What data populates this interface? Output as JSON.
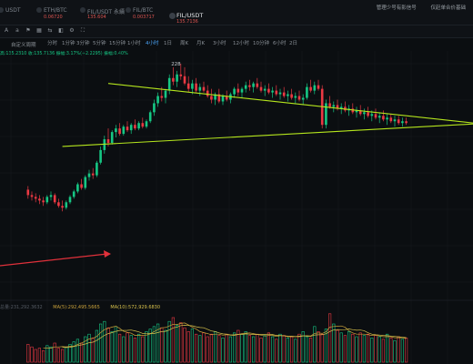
{
  "tabs": [
    {
      "name": "USDT",
      "price": "",
      "active": false
    },
    {
      "name": "ETH/BTC",
      "price": "0.06720",
      "active": false
    },
    {
      "name": "FIL/USDT 永續",
      "price": "135.604",
      "active": false
    },
    {
      "name": "FIL/BTC",
      "price": "0.003717",
      "active": false
    },
    {
      "name": "FIL/USDT",
      "price": "135.7136",
      "active": true
    }
  ],
  "top_links": [
    "管理少号有影信号",
    "仅赶单合价基础"
  ],
  "toolbar": {
    "chart_style": "自定义周期",
    "icons": [
      "text-size-icon",
      "text-icon",
      "indicator-icon",
      "layout-icon",
      "compare-icon",
      "screenshot-icon",
      "settings-icon",
      "fullscreen-icon"
    ],
    "icon_glyphs": [
      "A",
      "a",
      "⚑",
      "▦",
      "⇆",
      "◧",
      "⚙",
      "⛶"
    ]
  },
  "timeframes": [
    "分时",
    "1分钟",
    "3分钟",
    "5分钟",
    "15分钟",
    "30分钟",
    "1小时",
    "2小时",
    "4小时",
    "6小时",
    "12小时",
    "1日",
    "3日",
    "1周",
    "1月"
  ],
  "timeframes_row2": [
    "1日",
    "周K",
    "月K",
    "1分钟",
    "5分钟",
    "15分钟",
    "30分钟",
    "1小时",
    "2小时",
    "6小时",
    "12小时",
    "10分钟",
    "3小时",
    "1日",
    "2日",
    "3日",
    "年K"
  ],
  "active_timeframe": "4小时",
  "ohlc_legend": "高:135.2310  收:135.7136  振幅:3.17%(+2.2295)  振幅:0.40%",
  "peak_label": "228",
  "volume_legend": {
    "vol": "总量:231,292.3632",
    "ma5": "MA(5):292,495.5665",
    "ma10": "MA(10):572,929.6830"
  },
  "colors": {
    "up": "#16c784",
    "down": "#ea3943",
    "trendline": "#b5e61d",
    "arrow": "#e0313b",
    "ma5": "#c9a13a",
    "ma10": "#d6c04b",
    "background": "#0b0e11"
  },
  "chart_data": {
    "type": "candlestick",
    "candles": [
      [
        4,
        36,
        38,
        31,
        33
      ],
      [
        5,
        33,
        35,
        30,
        32
      ],
      [
        6,
        32,
        34,
        29,
        31
      ],
      [
        7,
        31,
        33,
        28,
        30
      ],
      [
        8,
        30,
        32,
        27,
        29
      ],
      [
        9,
        29,
        33,
        28,
        32
      ],
      [
        10,
        32,
        35,
        30,
        33
      ],
      [
        11,
        33,
        34,
        28,
        29
      ],
      [
        12,
        29,
        31,
        26,
        27
      ],
      [
        13,
        27,
        30,
        24,
        26
      ],
      [
        14,
        26,
        30,
        25,
        29
      ],
      [
        15,
        29,
        33,
        28,
        32
      ],
      [
        16,
        32,
        36,
        31,
        35
      ],
      [
        17,
        35,
        40,
        34,
        39
      ],
      [
        18,
        39,
        42,
        36,
        37
      ],
      [
        19,
        37,
        44,
        36,
        43
      ],
      [
        20,
        43,
        47,
        41,
        45
      ],
      [
        21,
        45,
        48,
        42,
        44
      ],
      [
        22,
        44,
        52,
        43,
        51
      ],
      [
        23,
        51,
        60,
        50,
        58
      ],
      [
        24,
        58,
        66,
        56,
        64
      ],
      [
        25,
        64,
        70,
        60,
        62
      ],
      [
        26,
        62,
        69,
        61,
        68
      ],
      [
        27,
        68,
        72,
        65,
        70
      ],
      [
        28,
        70,
        73,
        66,
        67
      ],
      [
        29,
        67,
        72,
        66,
        71
      ],
      [
        30,
        71,
        74,
        68,
        69
      ],
      [
        31,
        69,
        73,
        67,
        72
      ],
      [
        32,
        72,
        75,
        69,
        70
      ],
      [
        33,
        70,
        74,
        69,
        73
      ],
      [
        34,
        73,
        76,
        70,
        71
      ],
      [
        35,
        71,
        75,
        70,
        74
      ],
      [
        36,
        74,
        80,
        73,
        79
      ],
      [
        37,
        79,
        86,
        77,
        84
      ],
      [
        38,
        84,
        90,
        82,
        88
      ],
      [
        39,
        88,
        93,
        85,
        87
      ],
      [
        40,
        87,
        92,
        84,
        91
      ],
      [
        41,
        91,
        100,
        89,
        98
      ],
      [
        42,
        98,
        104,
        94,
        96
      ],
      [
        43,
        96,
        102,
        93,
        100
      ],
      [
        44,
        100,
        106,
        97,
        99
      ],
      [
        45,
        99,
        104,
        94,
        95
      ],
      [
        46,
        95,
        99,
        90,
        92
      ],
      [
        47,
        92,
        97,
        89,
        95
      ],
      [
        48,
        95,
        98,
        90,
        91
      ],
      [
        49,
        91,
        95,
        88,
        93
      ],
      [
        50,
        93,
        96,
        90,
        91
      ],
      [
        51,
        91,
        94,
        87,
        88
      ],
      [
        52,
        88,
        92,
        84,
        86
      ],
      [
        53,
        86,
        90,
        83,
        89
      ],
      [
        54,
        89,
        92,
        84,
        85
      ],
      [
        55,
        85,
        89,
        83,
        88
      ],
      [
        56,
        88,
        91,
        85,
        86
      ],
      [
        57,
        86,
        90,
        84,
        89
      ],
      [
        58,
        89,
        93,
        87,
        92
      ],
      [
        59,
        92,
        95,
        88,
        90
      ],
      [
        60,
        90,
        93,
        87,
        92
      ],
      [
        61,
        92,
        96,
        90,
        94
      ],
      [
        62,
        94,
        97,
        91,
        93
      ],
      [
        63,
        93,
        96,
        90,
        95
      ],
      [
        64,
        95,
        98,
        92,
        93
      ],
      [
        65,
        93,
        96,
        90,
        91
      ],
      [
        66,
        91,
        94,
        88,
        92
      ],
      [
        67,
        92,
        95,
        89,
        90
      ],
      [
        68,
        90,
        93,
        87,
        91
      ],
      [
        69,
        91,
        94,
        88,
        89
      ],
      [
        70,
        89,
        92,
        86,
        90
      ],
      [
        71,
        90,
        93,
        87,
        88
      ],
      [
        72,
        88,
        91,
        85,
        89
      ],
      [
        73,
        89,
        92,
        86,
        87
      ],
      [
        74,
        87,
        90,
        84,
        88
      ],
      [
        75,
        88,
        91,
        85,
        86
      ],
      [
        76,
        86,
        89,
        83,
        87
      ],
      [
        77,
        87,
        95,
        86,
        93
      ],
      [
        78,
        93,
        97,
        90,
        91
      ],
      [
        79,
        91,
        96,
        89,
        94
      ],
      [
        80,
        94,
        97,
        91,
        92
      ],
      [
        81,
        92,
        94,
        70,
        72
      ],
      [
        82,
        72,
        86,
        70,
        84
      ],
      [
        83,
        84,
        88,
        81,
        82
      ],
      [
        84,
        82,
        85,
        79,
        83
      ],
      [
        85,
        83,
        86,
        80,
        81
      ],
      [
        86,
        81,
        84,
        78,
        82
      ],
      [
        87,
        82,
        85,
        79,
        80
      ],
      [
        88,
        80,
        83,
        77,
        81
      ],
      [
        89,
        81,
        84,
        78,
        79
      ],
      [
        90,
        79,
        82,
        76,
        80
      ],
      [
        91,
        80,
        83,
        77,
        78
      ],
      [
        92,
        78,
        81,
        75,
        79
      ],
      [
        93,
        79,
        82,
        76,
        77
      ],
      [
        94,
        77,
        80,
        74,
        78
      ],
      [
        95,
        78,
        81,
        75,
        76
      ],
      [
        96,
        76,
        79,
        73,
        77
      ],
      [
        97,
        77,
        80,
        74,
        75
      ],
      [
        98,
        75,
        78,
        72,
        76
      ],
      [
        99,
        76,
        78,
        73,
        74
      ],
      [
        100,
        74,
        77,
        71,
        75
      ],
      [
        101,
        75,
        77,
        72,
        73
      ],
      [
        102,
        73,
        76,
        71,
        74
      ],
      [
        103,
        74,
        76,
        72,
        73
      ]
    ],
    "trendlines": [
      {
        "name": "upper",
        "from": [
          25,
          95
        ],
        "to": [
          125,
          72
        ]
      },
      {
        "name": "lower",
        "from": [
          13,
          60
        ],
        "to": [
          125,
          73
        ]
      }
    ],
    "volumes": [
      14,
      12,
      10,
      11,
      9,
      13,
      12,
      15,
      11,
      10,
      12,
      14,
      16,
      18,
      15,
      20,
      22,
      19,
      25,
      30,
      32,
      27,
      24,
      28,
      22,
      20,
      23,
      21,
      19,
      22,
      20,
      24,
      26,
      28,
      30,
      27,
      25,
      32,
      35,
      29,
      31,
      27,
      24,
      26,
      22,
      21,
      23,
      20,
      22,
      24,
      21,
      19,
      22,
      20,
      23,
      25,
      22,
      24,
      21,
      20,
      22,
      19,
      21,
      23,
      20,
      18,
      22,
      21,
      19,
      20,
      18,
      22,
      24,
      20,
      19,
      28,
      24,
      22,
      26,
      38,
      30,
      25,
      23,
      21,
      24,
      22,
      20,
      23,
      21,
      22,
      19,
      21,
      20,
      18,
      22,
      19,
      17,
      20,
      18,
      19
    ]
  }
}
